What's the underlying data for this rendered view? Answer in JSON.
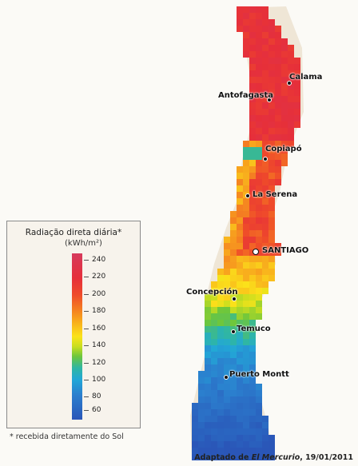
{
  "map": {
    "legend": {
      "title": "Radiação direta diária*",
      "unit": "(kWh/m²)",
      "ticks": [
        "240",
        "220",
        "200",
        "180",
        "160",
        "140",
        "120",
        "100",
        "80",
        "60"
      ]
    },
    "cities": [
      {
        "name": "Calama",
        "type": "city"
      },
      {
        "name": "Antofagasta",
        "type": "city"
      },
      {
        "name": "Copiapó",
        "type": "city"
      },
      {
        "name": "La Serena",
        "type": "city"
      },
      {
        "name": "SANTIAGO",
        "type": "capital"
      },
      {
        "name": "Concepción",
        "type": "city"
      },
      {
        "name": "Temuco",
        "type": "city"
      },
      {
        "name": "Puerto Montt",
        "type": "city"
      }
    ],
    "footnote": "* recebida diretamente do Sol",
    "credit_prefix": "Adaptado de ",
    "credit_source": "El Mercurio",
    "credit_suffix": ", 19/01/2011",
    "colors": {
      "high": "#e62f3a",
      "mid": "#fbe31a",
      "low": "#2a56b8",
      "background": "#fbfaf6"
    }
  }
}
